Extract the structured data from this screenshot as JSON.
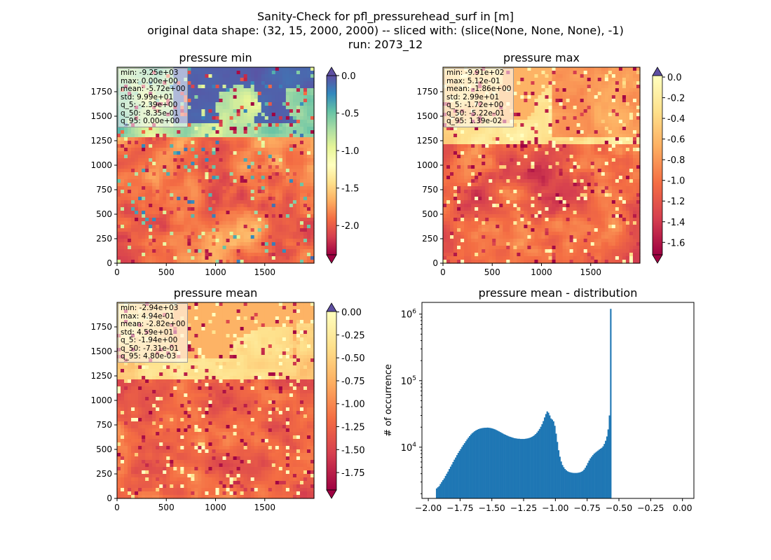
{
  "figure": {
    "title_lines": [
      "Sanity-Check for pfl_pressurehead_surf in [m]",
      "original data shape: (32, 15, 2000, 2000) -- sliced with: (slice(None, None, None), -1)",
      "run: 2073_12"
    ]
  },
  "colors": {
    "colormap": "Spectral",
    "histogram_bar": "#1f77b4",
    "axes": "#000000"
  },
  "chart_data": [
    {
      "type": "heatmap",
      "title": "pressure min",
      "xticks": [
        0,
        500,
        1000,
        1500
      ],
      "yticks": [
        0,
        250,
        500,
        750,
        1000,
        1250,
        1500,
        1750
      ],
      "xlim": [
        0,
        2000
      ],
      "ylim": [
        0,
        2000
      ],
      "colorbar": {
        "ticks": [
          "0.0",
          "-0.5",
          "-1.0",
          "-1.5",
          "-2.0"
        ],
        "vmin": -2.39,
        "vmax": 0.0,
        "extend": "both"
      },
      "stats": [
        "min: -9.25e+03",
        "max: 0.00e+00",
        "mean: -5.72e+00",
        "std: 9.99e+01",
        "q_5: -2.39e+00",
        "q_50: -8.35e-01",
        "q_95: 0.00e+00"
      ]
    },
    {
      "type": "heatmap",
      "title": "pressure max",
      "xticks": [
        0,
        500,
        1000,
        1500
      ],
      "yticks": [
        0,
        250,
        500,
        750,
        1000,
        1250,
        1500,
        1750
      ],
      "xlim": [
        0,
        2000
      ],
      "ylim": [
        0,
        2000
      ],
      "colorbar": {
        "ticks": [
          "0.0",
          "-0.2",
          "-0.4",
          "-0.6",
          "-0.8",
          "-1.0",
          "-1.2",
          "-1.4",
          "-1.6"
        ],
        "vmin": -1.72,
        "vmax": 0.0139,
        "extend": "both"
      },
      "stats": [
        "min: -9.91e+02",
        "max: 5.12e-01",
        "mean: -1.86e+00",
        "std: 2.99e+01",
        "q_5: -1.72e+00",
        "q_50: -5.22e-01",
        "q_95: 1.39e-02"
      ]
    },
    {
      "type": "heatmap",
      "title": "pressure mean",
      "xticks": [
        0,
        500,
        1000,
        1500
      ],
      "yticks": [
        0,
        250,
        500,
        750,
        1000,
        1250,
        1500,
        1750
      ],
      "xlim": [
        0,
        2000
      ],
      "ylim": [
        0,
        2000
      ],
      "colorbar": {
        "ticks": [
          "0.00",
          "-0.25",
          "-0.50",
          "-0.75",
          "-1.00",
          "-1.25",
          "-1.50",
          "-1.75"
        ],
        "vmin": -1.94,
        "vmax": 0.0048,
        "extend": "both"
      },
      "stats": [
        "min: -2.94e+03",
        "max: 4.94e-01",
        "mean: -2.82e+00",
        "std: 4.59e+01",
        "q_5: -1.94e+00",
        "q_50: -7.31e-01",
        "q_95: 4.80e-03"
      ]
    },
    {
      "type": "bar",
      "title": "pressure mean - distribution",
      "xlabel": "",
      "ylabel": "# of occurrence",
      "yscale": "log",
      "xlim": [
        -2.05,
        0.09
      ],
      "ylim": [
        1700,
        1500000
      ],
      "xticks": [
        "-2.00",
        "-1.75",
        "-1.50",
        "-1.25",
        "-1.00",
        "-0.75",
        "-0.50",
        "-0.25",
        "0.00"
      ],
      "yticks": [
        "10^4",
        "10^5",
        "10^6"
      ],
      "bins": {
        "start": -1.94,
        "width": 0.01
      },
      "counts": [
        2400,
        2500,
        2600,
        2800,
        3000,
        3200,
        3400,
        3700,
        4000,
        4300,
        4700,
        5100,
        5500,
        6000,
        6500,
        7000,
        7600,
        8200,
        8800,
        9400,
        10100,
        10800,
        11500,
        12300,
        13100,
        13900,
        14700,
        15500,
        16200,
        16800,
        17400,
        17900,
        18300,
        18700,
        19000,
        19200,
        19400,
        19500,
        19600,
        19600,
        19700,
        19600,
        19500,
        19300,
        19100,
        18800,
        18500,
        18100,
        17700,
        17300,
        16900,
        16500,
        16100,
        15700,
        15400,
        15100,
        14800,
        14500,
        14300,
        14100,
        13900,
        13700,
        13600,
        13500,
        13400,
        13400,
        13300,
        13300,
        13300,
        13300,
        13400,
        13500,
        13600,
        13800,
        14000,
        14300,
        14700,
        15200,
        15800,
        16600,
        17600,
        18800,
        20300,
        22200,
        24700,
        28000,
        31500,
        34500,
        33000,
        30000,
        27000,
        26000,
        24500,
        21000,
        16000,
        12000,
        9000,
        7200,
        6100,
        5400,
        5000,
        4700,
        4500,
        4350,
        4250,
        4200,
        4150,
        4120,
        4100,
        4100,
        4100,
        4120,
        4150,
        4200,
        4280,
        4400,
        4600,
        4900,
        5300,
        5800,
        6300,
        6800,
        7200,
        7600,
        8000,
        8300,
        8600,
        8900,
        9200,
        9500,
        9800,
        10300,
        11200,
        12500,
        14500,
        18500,
        30000,
        1200000
      ]
    }
  ]
}
